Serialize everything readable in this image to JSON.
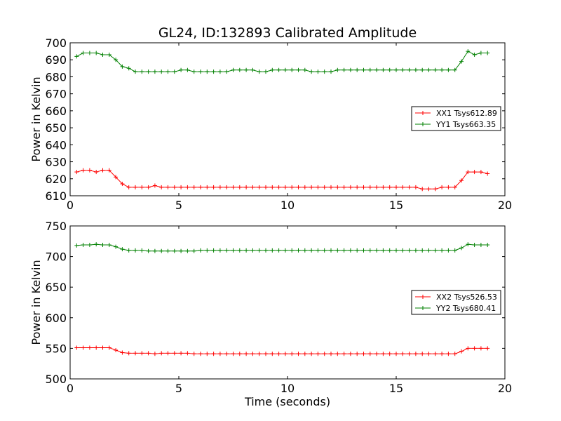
{
  "figure": {
    "title": "GL24, ID:132893 Calibrated Amplitude"
  },
  "chart_data": [
    {
      "type": "line",
      "title": "GL24, ID:132893 Calibrated Amplitude",
      "xlabel": "",
      "ylabel": "Power in Kelvin",
      "xlim": [
        0,
        20
      ],
      "ylim": [
        610,
        700
      ],
      "xticks": [
        0,
        5,
        10,
        15,
        20
      ],
      "yticks": [
        610,
        620,
        630,
        640,
        650,
        660,
        670,
        680,
        690,
        700
      ],
      "grid": false,
      "legend_position": "right",
      "x": [
        0.3,
        0.6,
        0.9,
        1.2,
        1.5,
        1.8,
        2.1,
        2.4,
        2.7,
        3.0,
        3.3,
        3.6,
        3.9,
        4.2,
        4.5,
        4.8,
        5.1,
        5.4,
        5.7,
        6.0,
        6.3,
        6.6,
        6.9,
        7.2,
        7.5,
        7.8,
        8.1,
        8.4,
        8.7,
        9.0,
        9.3,
        9.6,
        9.9,
        10.2,
        10.5,
        10.8,
        11.1,
        11.4,
        11.7,
        12.0,
        12.3,
        12.6,
        12.9,
        13.2,
        13.5,
        13.8,
        14.1,
        14.4,
        14.7,
        15.0,
        15.3,
        15.6,
        15.9,
        16.2,
        16.5,
        16.8,
        17.1,
        17.4,
        17.7,
        18.0,
        18.3,
        18.6,
        18.9,
        19.2
      ],
      "series": [
        {
          "name": "XX1 Tsys612.89",
          "color": "#ff0000",
          "values": [
            624,
            625,
            625,
            624,
            625,
            625,
            621,
            617,
            615,
            615,
            615,
            615,
            616,
            615,
            615,
            615,
            615,
            615,
            615,
            615,
            615,
            615,
            615,
            615,
            615,
            615,
            615,
            615,
            615,
            615,
            615,
            615,
            615,
            615,
            615,
            615,
            615,
            615,
            615,
            615,
            615,
            615,
            615,
            615,
            615,
            615,
            615,
            615,
            615,
            615,
            615,
            615,
            615,
            614,
            614,
            614,
            615,
            615,
            615,
            619,
            624,
            624,
            624,
            623
          ]
        },
        {
          "name": "YY1 Tsys663.35",
          "color": "#008000",
          "values": [
            692,
            694,
            694,
            694,
            693,
            693,
            690,
            686,
            685,
            683,
            683,
            683,
            683,
            683,
            683,
            683,
            684,
            684,
            683,
            683,
            683,
            683,
            683,
            683,
            684,
            684,
            684,
            684,
            683,
            683,
            684,
            684,
            684,
            684,
            684,
            684,
            683,
            683,
            683,
            683,
            684,
            684,
            684,
            684,
            684,
            684,
            684,
            684,
            684,
            684,
            684,
            684,
            684,
            684,
            684,
            684,
            684,
            684,
            684,
            689,
            695,
            693,
            694,
            694
          ]
        }
      ]
    },
    {
      "type": "line",
      "title": "",
      "xlabel": "Time (seconds)",
      "ylabel": "Power in Kelvin",
      "xlim": [
        0,
        20
      ],
      "ylim": [
        500,
        750
      ],
      "xticks": [
        0,
        5,
        10,
        15,
        20
      ],
      "yticks": [
        500,
        550,
        600,
        650,
        700,
        750
      ],
      "grid": false,
      "legend_position": "right",
      "x": [
        0.3,
        0.6,
        0.9,
        1.2,
        1.5,
        1.8,
        2.1,
        2.4,
        2.7,
        3.0,
        3.3,
        3.6,
        3.9,
        4.2,
        4.5,
        4.8,
        5.1,
        5.4,
        5.7,
        6.0,
        6.3,
        6.6,
        6.9,
        7.2,
        7.5,
        7.8,
        8.1,
        8.4,
        8.7,
        9.0,
        9.3,
        9.6,
        9.9,
        10.2,
        10.5,
        10.8,
        11.1,
        11.4,
        11.7,
        12.0,
        12.3,
        12.6,
        12.9,
        13.2,
        13.5,
        13.8,
        14.1,
        14.4,
        14.7,
        15.0,
        15.3,
        15.6,
        15.9,
        16.2,
        16.5,
        16.8,
        17.1,
        17.4,
        17.7,
        18.0,
        18.3,
        18.6,
        18.9,
        19.2
      ],
      "series": [
        {
          "name": "XX2 Tsys526.53",
          "color": "#ff0000",
          "values": [
            551,
            551,
            551,
            551,
            551,
            551,
            547,
            543,
            542,
            542,
            542,
            542,
            541,
            542,
            542,
            542,
            542,
            542,
            541,
            541,
            541,
            541,
            541,
            541,
            541,
            541,
            541,
            541,
            541,
            541,
            541,
            541,
            541,
            541,
            541,
            541,
            541,
            541,
            541,
            541,
            541,
            541,
            541,
            541,
            541,
            541,
            541,
            541,
            541,
            541,
            541,
            541,
            541,
            541,
            541,
            541,
            541,
            541,
            541,
            545,
            550,
            550,
            550,
            550
          ]
        },
        {
          "name": "YY2 Tsys680.41",
          "color": "#008000",
          "values": [
            718,
            719,
            719,
            720,
            719,
            719,
            716,
            712,
            710,
            710,
            710,
            709,
            709,
            709,
            709,
            709,
            709,
            709,
            709,
            710,
            710,
            710,
            710,
            710,
            710,
            710,
            710,
            710,
            710,
            710,
            710,
            710,
            710,
            710,
            710,
            710,
            710,
            710,
            710,
            710,
            710,
            710,
            710,
            710,
            710,
            710,
            710,
            710,
            710,
            710,
            710,
            710,
            710,
            710,
            710,
            710,
            710,
            710,
            710,
            714,
            720,
            719,
            719,
            719
          ]
        }
      ]
    }
  ]
}
